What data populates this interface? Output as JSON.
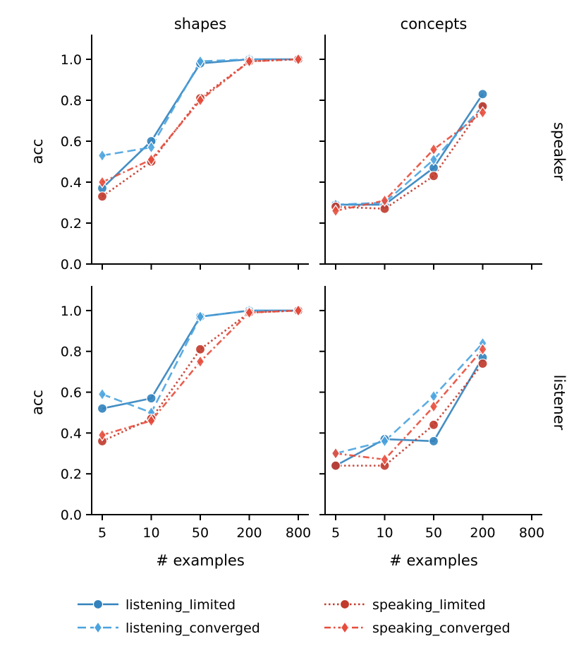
{
  "chart_data": {
    "type": "line",
    "facets": {
      "columns": [
        "shapes",
        "concepts"
      ],
      "rows": [
        "speaker",
        "listener"
      ]
    },
    "x": [
      "5",
      "10",
      "50",
      "200",
      "800"
    ],
    "xlabel": "# examples",
    "ylabel": "acc",
    "ylim": [
      0.0,
      1.1
    ],
    "yticks": [
      "0.0",
      "0.2",
      "0.4",
      "0.6",
      "0.8",
      "1.0"
    ],
    "grid": false,
    "legend_position": "bottom",
    "legend": [
      {
        "label": "listening_limited",
        "color": "#3182bd",
        "dash": "solid",
        "marker": "circle"
      },
      {
        "label": "listening_converged",
        "color": "#4aa3df",
        "dash": "dashed",
        "marker": "diamond"
      },
      {
        "label": "speaking_limited",
        "color": "#c0392b",
        "dash": "dotted",
        "marker": "circle"
      },
      {
        "label": "speaking_converged",
        "color": "#e74c3c",
        "dash": "dashdot",
        "marker": "diamond"
      }
    ],
    "panels": [
      {
        "col": "shapes",
        "row": "speaker",
        "series": [
          {
            "name": "listening_limited",
            "values": [
              0.37,
              0.6,
              0.98,
              1.0,
              1.0
            ]
          },
          {
            "name": "listening_converged",
            "values": [
              0.53,
              0.57,
              0.99,
              1.0,
              1.0
            ]
          },
          {
            "name": "speaking_limited",
            "values": [
              0.33,
              0.5,
              0.81,
              0.99,
              1.0
            ]
          },
          {
            "name": "speaking_converged",
            "values": [
              0.4,
              0.51,
              0.8,
              0.99,
              1.0
            ]
          }
        ]
      },
      {
        "col": "concepts",
        "row": "speaker",
        "series": [
          {
            "name": "listening_limited",
            "values": [
              0.29,
              0.29,
              0.47,
              0.83
            ]
          },
          {
            "name": "listening_converged",
            "values": [
              0.29,
              0.3,
              0.51,
              0.77
            ]
          },
          {
            "name": "speaking_limited",
            "values": [
              0.28,
              0.27,
              0.43,
              0.77
            ]
          },
          {
            "name": "speaking_converged",
            "values": [
              0.26,
              0.31,
              0.56,
              0.74
            ]
          }
        ]
      },
      {
        "col": "shapes",
        "row": "listener",
        "series": [
          {
            "name": "listening_limited",
            "values": [
              0.52,
              0.57,
              0.97,
              1.0,
              1.0
            ]
          },
          {
            "name": "listening_converged",
            "values": [
              0.59,
              0.5,
              0.97,
              1.0,
              1.0
            ]
          },
          {
            "name": "speaking_limited",
            "values": [
              0.36,
              0.47,
              0.81,
              0.99,
              1.0
            ]
          },
          {
            "name": "speaking_converged",
            "values": [
              0.39,
              0.46,
              0.75,
              0.99,
              1.0
            ]
          }
        ]
      },
      {
        "col": "concepts",
        "row": "listener",
        "series": [
          {
            "name": "listening_limited",
            "values": [
              0.24,
              0.37,
              0.36,
              0.77
            ]
          },
          {
            "name": "listening_converged",
            "values": [
              0.3,
              0.36,
              0.58,
              0.84
            ]
          },
          {
            "name": "speaking_limited",
            "values": [
              0.24,
              0.24,
              0.44,
              0.74
            ]
          },
          {
            "name": "speaking_converged",
            "values": [
              0.3,
              0.27,
              0.53,
              0.81
            ]
          }
        ]
      }
    ]
  }
}
